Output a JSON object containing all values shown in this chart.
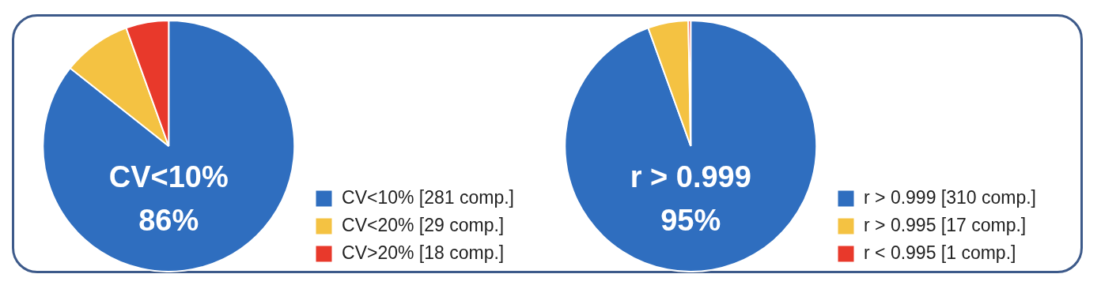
{
  "chart_data": [
    {
      "type": "pie",
      "categories": [
        "CV<10% [281 comp.]",
        "CV<20% [29 comp.]",
        "CV>20% [18 comp.]"
      ],
      "values": [
        281,
        29,
        18
      ],
      "colors": [
        "#2f6ebf",
        "#f4c242",
        "#e8392b"
      ],
      "legend": "bottom right",
      "annotations": [
        "CV<10%",
        "86%"
      ]
    },
    {
      "type": "pie",
      "categories": [
        "r > 0.999 [310 comp.]",
        "r > 0.995 [17 comp.]",
        "r < 0.995 [1 comp.]"
      ],
      "values": [
        310,
        17,
        1
      ],
      "colors": [
        "#2f6ebf",
        "#f4c242",
        "#e8392b"
      ],
      "legend": "bottom right",
      "annotations": [
        "r > 0.999",
        "95%"
      ]
    }
  ]
}
